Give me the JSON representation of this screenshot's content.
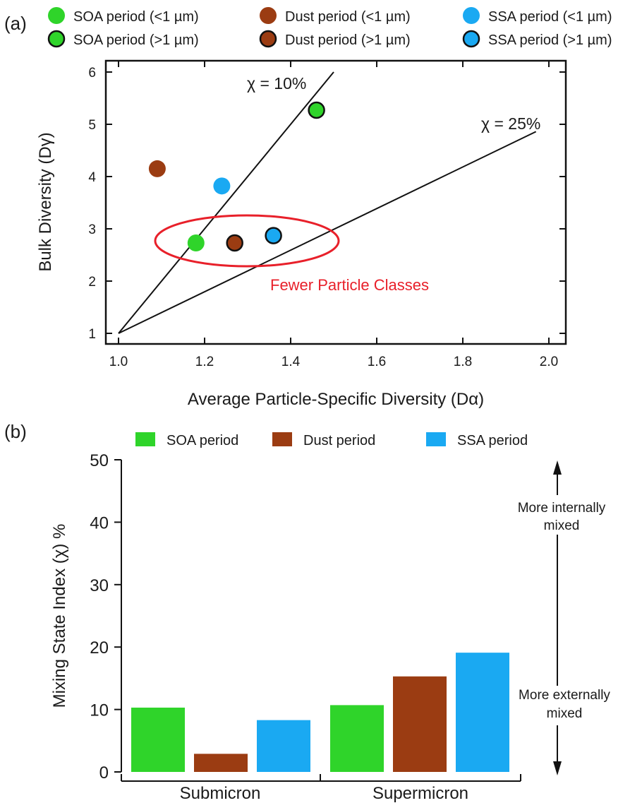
{
  "chart_data": [
    {
      "panel_label": "(a)",
      "type": "scatter",
      "xlabel": "Average Particle-Specific Diversity (Dα)",
      "ylabel": "Bulk Diversity (Dγ)",
      "xlim": [
        1.0,
        2.0
      ],
      "ylim": [
        1,
        6
      ],
      "x_ticks": [
        "1.0",
        "1.2",
        "1.4",
        "1.6",
        "1.8",
        "2.0"
      ],
      "y_ticks": [
        "1",
        "2",
        "3",
        "4",
        "5",
        "6"
      ],
      "legend_position": "top",
      "series": [
        {
          "name": "SOA period (<1 µm)",
          "color": "#2fd42a",
          "outlined": false,
          "x": [
            1.18
          ],
          "y": [
            2.73
          ]
        },
        {
          "name": "SOA period (>1 µm)",
          "color": "#2fd42a",
          "outlined": true,
          "x": [
            1.46
          ],
          "y": [
            5.27
          ]
        },
        {
          "name": "Dust period (<1 µm)",
          "color": "#9b3c12",
          "outlined": false,
          "x": [
            1.09
          ],
          "y": [
            4.15
          ]
        },
        {
          "name": "Dust period (>1 µm)",
          "color": "#9b3c12",
          "outlined": true,
          "x": [
            1.27
          ],
          "y": [
            2.73
          ]
        },
        {
          "name": "SSA period (<1 µm)",
          "color": "#1aa9f2",
          "outlined": false,
          "x": [
            1.24
          ],
          "y": [
            3.82
          ]
        },
        {
          "name": "SSA period (>1 µm)",
          "color": "#1aa9f2",
          "outlined": true,
          "x": [
            1.36
          ],
          "y": [
            2.87
          ]
        }
      ],
      "reference_lines": [
        {
          "label": "χ = 10%",
          "x": [
            1.0,
            1.5
          ],
          "y": [
            1.0,
            6.0
          ]
        },
        {
          "label": "χ = 25%",
          "x": [
            1.0,
            1.97
          ],
          "y": [
            1.0,
            4.86
          ]
        }
      ],
      "annotation": {
        "text": "Fewer Particle Classes",
        "color": "#e8202a"
      }
    },
    {
      "panel_label": "(b)",
      "type": "bar",
      "categories": [
        "Submicron",
        "Supermicron"
      ],
      "ylabel": "Mixing State Index (χ) %",
      "ylim": [
        0,
        50
      ],
      "y_ticks": [
        "0",
        "10",
        "20",
        "30",
        "40",
        "50"
      ],
      "legend_position": "top",
      "series": [
        {
          "name": "SOA period",
          "color": "#2fd42a",
          "values": [
            10.3,
            10.7
          ]
        },
        {
          "name": "Dust period",
          "color": "#9b3c12",
          "values": [
            2.9,
            15.3
          ]
        },
        {
          "name": "SSA period",
          "color": "#1aa9f2",
          "values": [
            8.3,
            19.1
          ]
        }
      ],
      "annotations": {
        "internal": [
          "More internally",
          "mixed"
        ],
        "external": [
          "More externally",
          "mixed"
        ]
      }
    }
  ]
}
